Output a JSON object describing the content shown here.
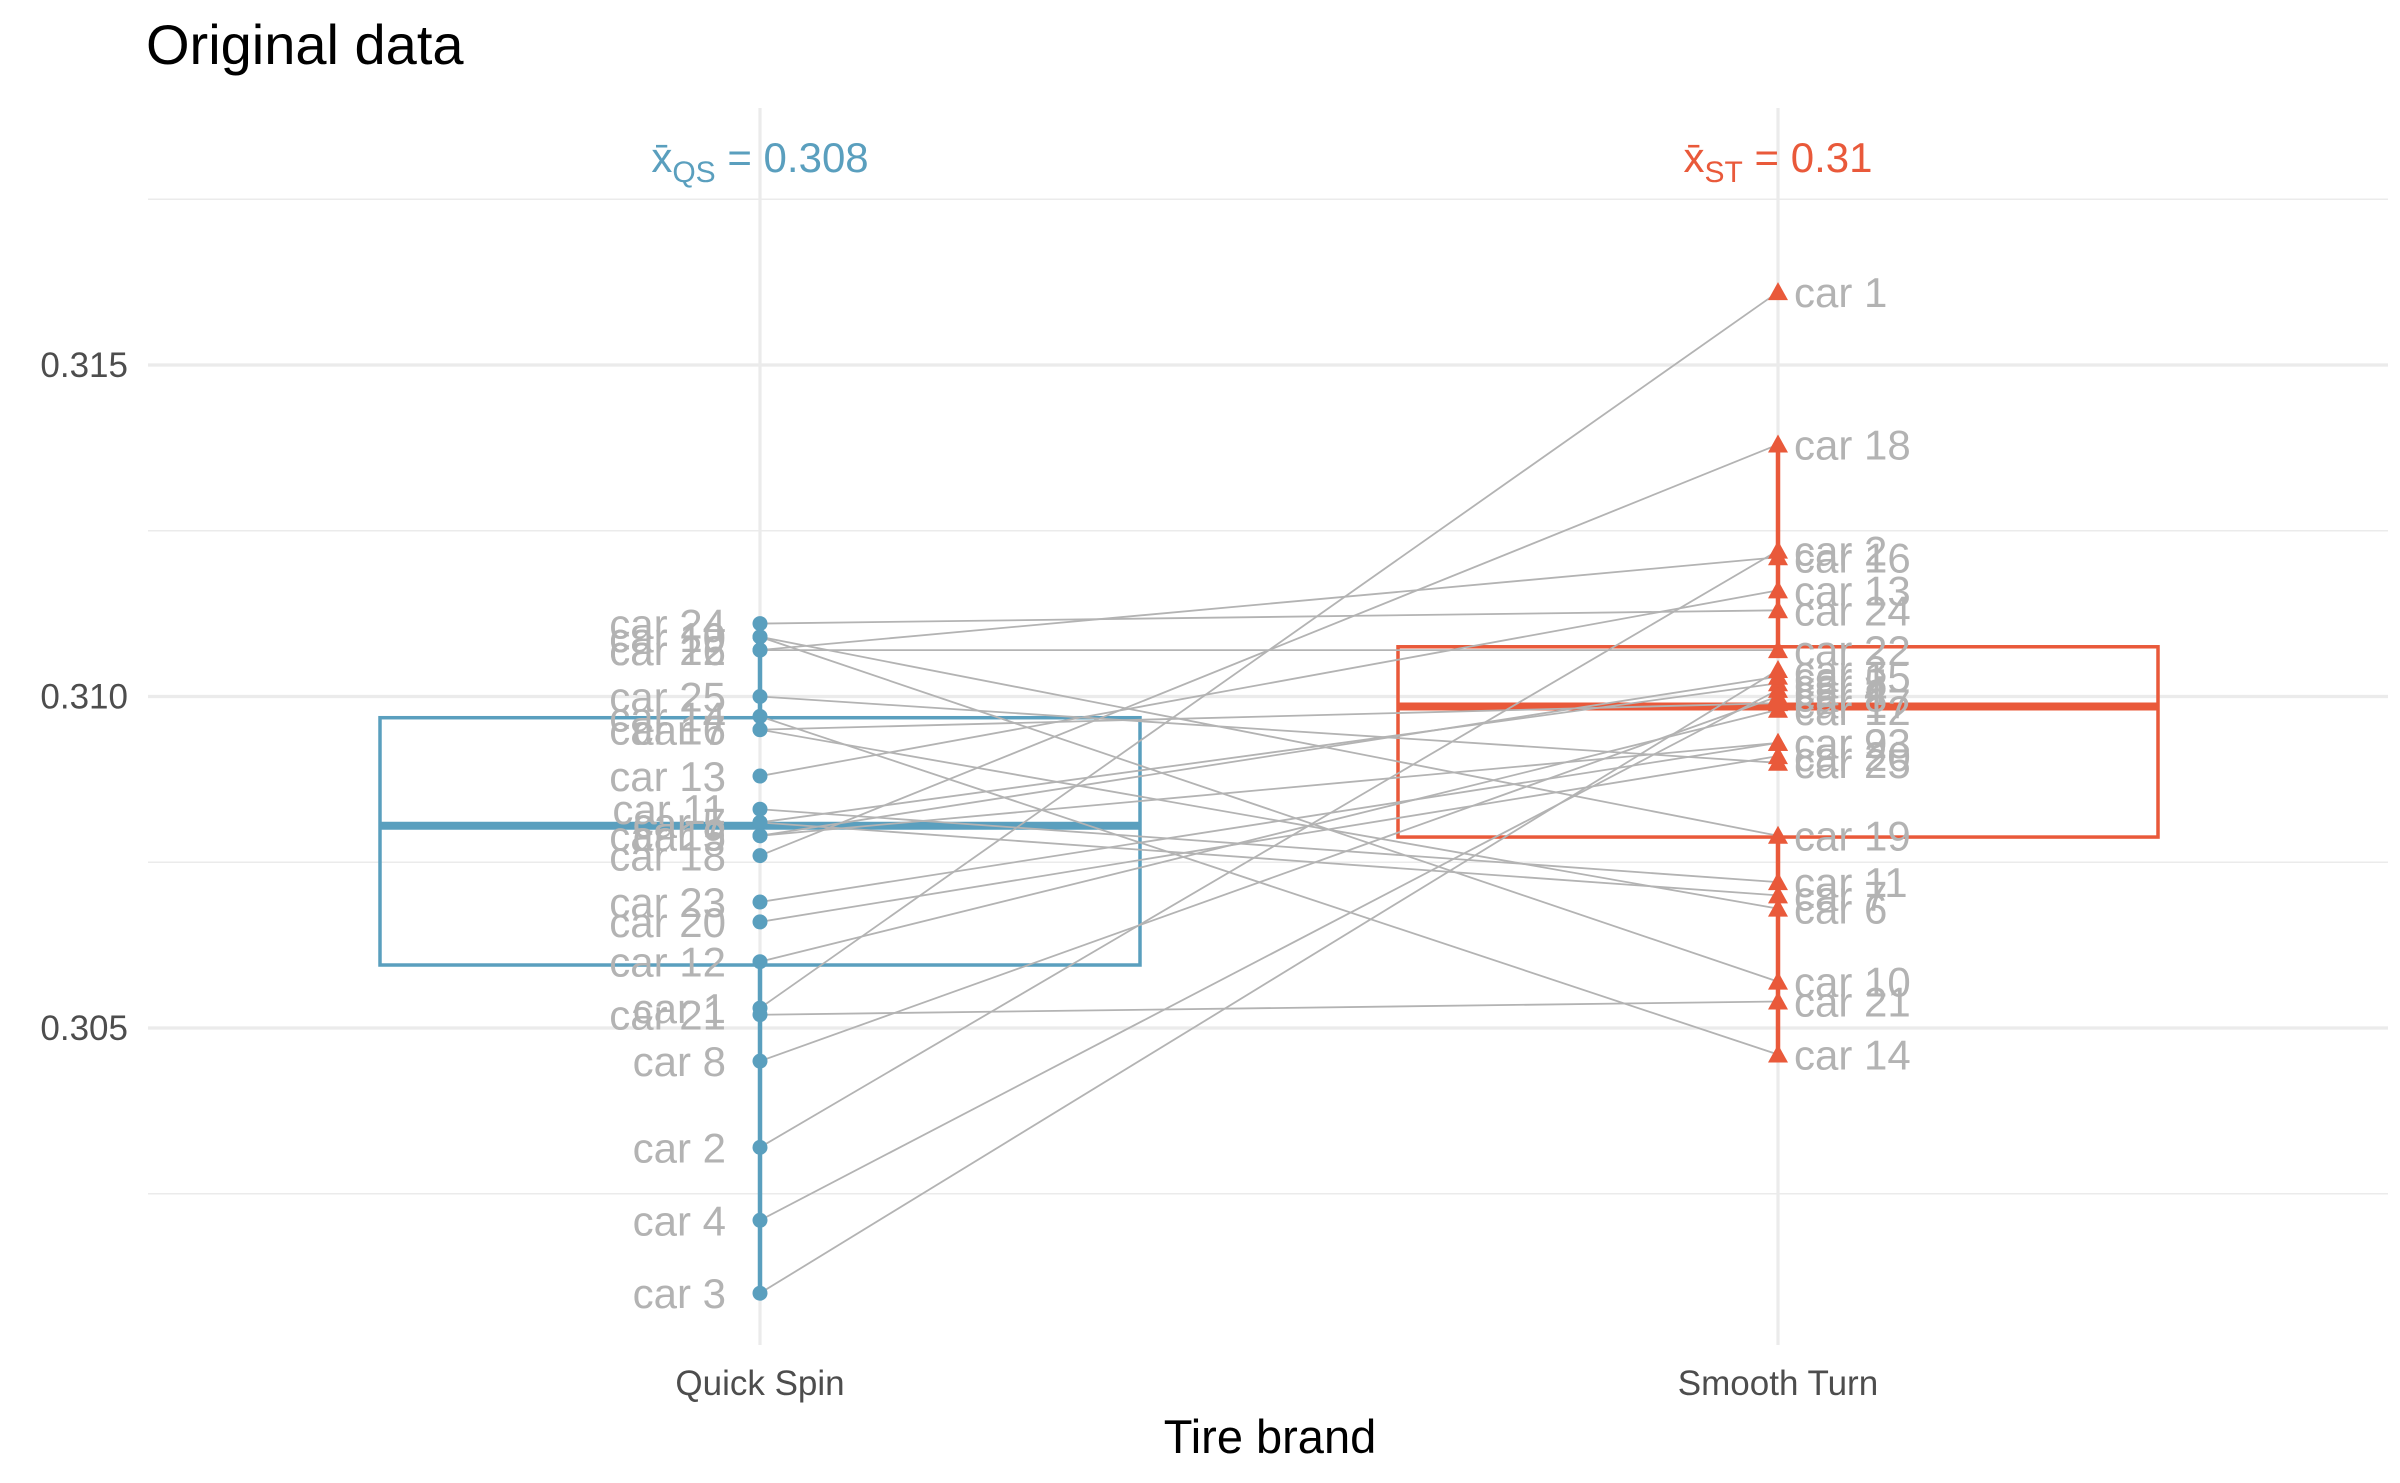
{
  "chart_data": {
    "type": "box",
    "title": "Original data",
    "xlabel": "Tire brand",
    "ylabel": "",
    "ylim": [
      0.3,
      0.318
    ],
    "yticks": [
      "0.305",
      "0.310",
      "0.315"
    ],
    "grid": true,
    "categories": [
      "Quick Spin",
      "Smooth Turn"
    ],
    "colors": {
      "quick_spin": "#5a9fbe",
      "smooth_turn": "#e9593a",
      "pair_line": "#b3b3b3",
      "car_label": "#b3b3b3"
    },
    "boxes": [
      {
        "category": "Quick Spin",
        "q1": 0.30595,
        "median": 0.30805,
        "q3": 0.30968,
        "whisker_low": 0.301,
        "whisker_high": 0.3111
      },
      {
        "category": "Smooth Turn",
        "q1": 0.30788,
        "median": 0.30985,
        "q3": 0.31075,
        "whisker_low": 0.3046,
        "whisker_high": 0.3138
      }
    ],
    "means": [
      {
        "category": "Quick Spin",
        "symbol": "x̄",
        "subscript": "QS",
        "text": " = 0.308"
      },
      {
        "category": "Smooth Turn",
        "symbol": "x̄",
        "subscript": "ST",
        "text": " = 0.31"
      }
    ],
    "pairs": [
      {
        "car": "car 1",
        "quick_spin": 0.3053,
        "smooth_turn": 0.3161
      },
      {
        "car": "car 2",
        "quick_spin": 0.3032,
        "smooth_turn": 0.3122
      },
      {
        "car": "car 3",
        "quick_spin": 0.301,
        "smooth_turn": 0.3104
      },
      {
        "car": "car 4",
        "quick_spin": 0.3021,
        "smooth_turn": 0.3101
      },
      {
        "car": "car 5",
        "quick_spin": 0.3081,
        "smooth_turn": 0.3102
      },
      {
        "car": "car 6",
        "quick_spin": 0.3095,
        "smooth_turn": 0.3068
      },
      {
        "car": "car 7",
        "quick_spin": 0.3081,
        "smooth_turn": 0.307
      },
      {
        "car": "car 8",
        "quick_spin": 0.3045,
        "smooth_turn": 0.31
      },
      {
        "car": "car 9",
        "quick_spin": 0.3079,
        "smooth_turn": 0.3093
      },
      {
        "car": "car 10",
        "quick_spin": 0.3109,
        "smooth_turn": 0.3057
      },
      {
        "car": "car 11",
        "quick_spin": 0.3083,
        "smooth_turn": 0.3072
      },
      {
        "car": "car 12",
        "quick_spin": 0.306,
        "smooth_turn": 0.3098
      },
      {
        "car": "car 13",
        "quick_spin": 0.3088,
        "smooth_turn": 0.3116
      },
      {
        "car": "car 14",
        "quick_spin": 0.3097,
        "smooth_turn": 0.3046
      },
      {
        "car": "car 15",
        "quick_spin": 0.3079,
        "smooth_turn": 0.3103
      },
      {
        "car": "car 16",
        "quick_spin": 0.3107,
        "smooth_turn": 0.3121
      },
      {
        "car": "car 17",
        "quick_spin": 0.3095,
        "smooth_turn": 0.3099
      },
      {
        "car": "car 18",
        "quick_spin": 0.3076,
        "smooth_turn": 0.3138
      },
      {
        "car": "car 19",
        "quick_spin": 0.3109,
        "smooth_turn": 0.3079
      },
      {
        "car": "car 20",
        "quick_spin": 0.3066,
        "smooth_turn": 0.3091
      },
      {
        "car": "car 21",
        "quick_spin": 0.3052,
        "smooth_turn": 0.3054
      },
      {
        "car": "car 22",
        "quick_spin": 0.3107,
        "smooth_turn": 0.3107
      },
      {
        "car": "car 23",
        "quick_spin": 0.3069,
        "smooth_turn": 0.3093
      },
      {
        "car": "car 24",
        "quick_spin": 0.3111,
        "smooth_turn": 0.3113
      },
      {
        "car": "car 25",
        "quick_spin": 0.31,
        "smooth_turn": 0.309
      }
    ]
  }
}
